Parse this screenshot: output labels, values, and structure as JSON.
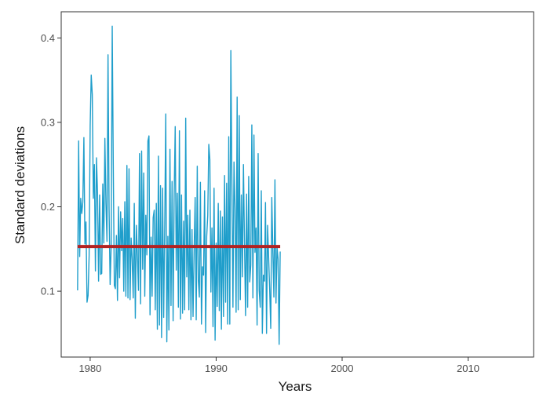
{
  "chart_data": {
    "type": "line",
    "title": "",
    "xlabel": "Years",
    "ylabel": "Standard deviations",
    "xlim": [
      1977.7,
      2015.2
    ],
    "ylim": [
      0.022,
      0.431
    ],
    "x_ticks": [
      1980,
      1990,
      2000,
      2010
    ],
    "y_ticks": [
      0.1,
      0.2,
      0.3,
      0.4
    ],
    "x_tick_labels": [
      "1980",
      "1990",
      "2000",
      "2010"
    ],
    "y_tick_labels": [
      "0.1",
      "0.2",
      "0.3",
      "0.4"
    ],
    "grid": false,
    "legend": "none",
    "x_start": 1979.0,
    "x_step": 0.083333,
    "series": [
      {
        "color": "#1f9ecb",
        "values": [
          0.101,
          0.278,
          0.141,
          0.21,
          0.192,
          0.206,
          0.282,
          0.156,
          0.182,
          0.087,
          0.095,
          0.142,
          0.296,
          0.356,
          0.333,
          0.21,
          0.25,
          0.124,
          0.258,
          0.216,
          0.112,
          0.214,
          0.12,
          0.121,
          0.227,
          0.157,
          0.281,
          0.205,
          0.159,
          0.38,
          0.198,
          0.108,
          0.153,
          0.414,
          0.25,
          0.107,
          0.103,
          0.166,
          0.089,
          0.2,
          0.116,
          0.194,
          0.148,
          0.186,
          0.1,
          0.206,
          0.094,
          0.249,
          0.092,
          0.245,
          0.09,
          0.163,
          0.138,
          0.092,
          0.204,
          0.068,
          0.178,
          0.142,
          0.101,
          0.263,
          0.085,
          0.266,
          0.126,
          0.24,
          0.094,
          0.19,
          0.143,
          0.278,
          0.284,
          0.072,
          0.164,
          0.094,
          0.187,
          0.196,
          0.078,
          0.204,
          0.055,
          0.26,
          0.06,
          0.225,
          0.045,
          0.222,
          0.069,
          0.175,
          0.31,
          0.04,
          0.165,
          0.054,
          0.268,
          0.083,
          0.23,
          0.065,
          0.213,
          0.295,
          0.125,
          0.216,
          0.081,
          0.29,
          0.067,
          0.214,
          0.074,
          0.183,
          0.078,
          0.305,
          0.117,
          0.19,
          0.078,
          0.196,
          0.066,
          0.173,
          0.07,
          0.147,
          0.211,
          0.066,
          0.248,
          0.113,
          0.093,
          0.229,
          0.061,
          0.129,
          0.119,
          0.219,
          0.051,
          0.165,
          0.19,
          0.274,
          0.256,
          0.099,
          0.175,
          0.058,
          0.222,
          0.042,
          0.157,
          0.082,
          0.204,
          0.077,
          0.195,
          0.055,
          0.188,
          0.07,
          0.237,
          0.087,
          0.228,
          0.061,
          0.283,
          0.061,
          0.385,
          0.231,
          0.081,
          0.253,
          0.198,
          0.075,
          0.33,
          0.078,
          0.308,
          0.09,
          0.214,
          0.117,
          0.25,
          0.157,
          0.071,
          0.215,
          0.081,
          0.236,
          0.111,
          0.131,
          0.297,
          0.092,
          0.285,
          0.146,
          0.175,
          0.06,
          0.263,
          0.101,
          0.081,
          0.219,
          0.05,
          0.119,
          0.112,
          0.205,
          0.05,
          0.178,
          0.14,
          0.102,
          0.056,
          0.211,
          0.148,
          0.093,
          0.232,
          0.086,
          0.152,
          0.138,
          0.037,
          0.147
        ]
      },
      {
        "color": "#b22222",
        "values": [
          0.153,
          0.153
        ]
      }
    ]
  }
}
